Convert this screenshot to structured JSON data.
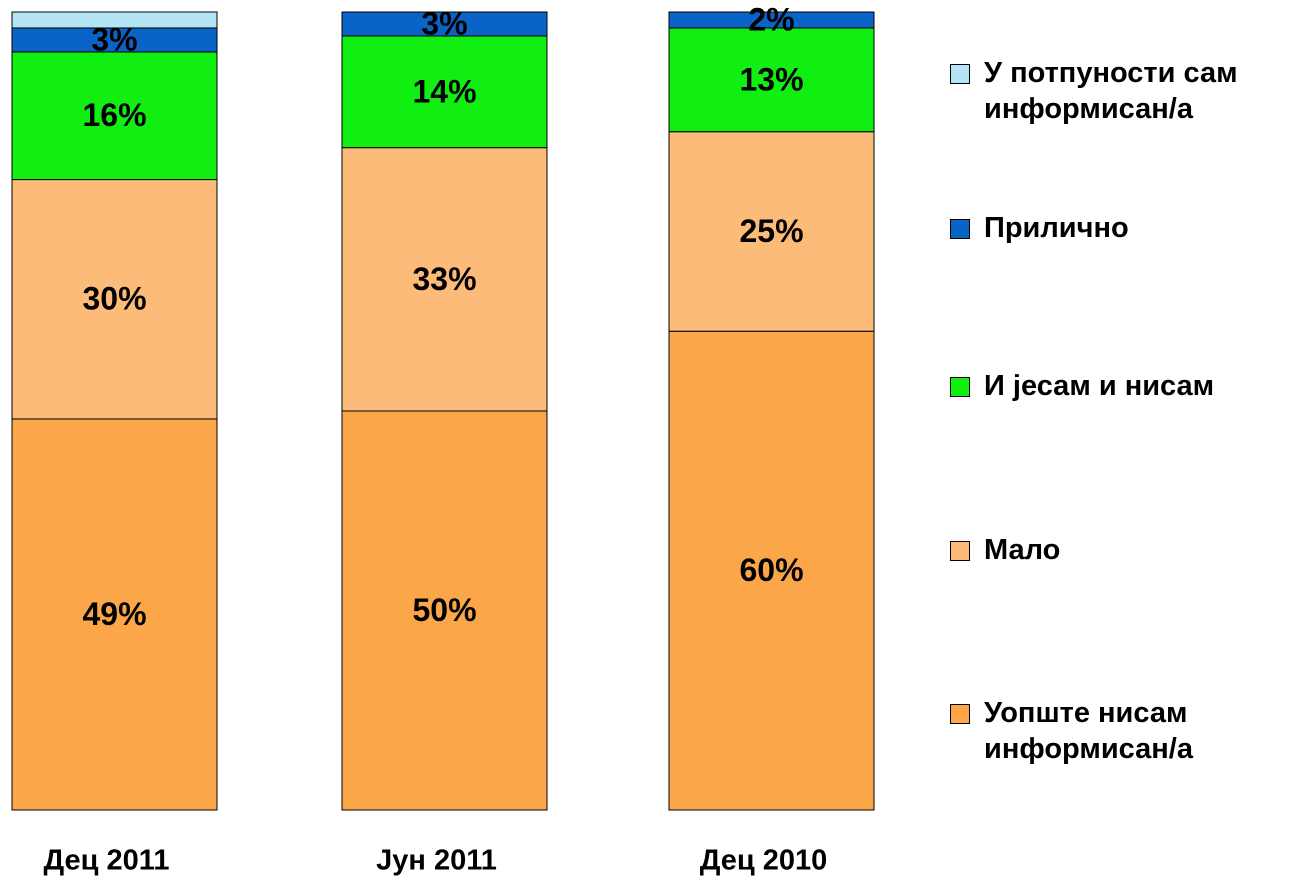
{
  "chart_data": {
    "type": "stacked_bar",
    "categories": [
      "Дец 2011",
      "Јун 2011",
      "Дец 2010"
    ],
    "ylim": [
      0,
      100
    ],
    "legend": "right",
    "series": [
      {
        "name": "Уопште нисам информисан/а",
        "color": "#fca64a",
        "values": [
          49,
          50,
          60
        ],
        "value_labels": [
          "49%",
          "50%",
          "60%"
        ]
      },
      {
        "name": "Мало",
        "color": "#fdbb7a",
        "values": [
          30,
          33,
          25
        ],
        "value_labels": [
          "30%",
          "33%",
          "25%"
        ]
      },
      {
        "name": "И јесам и нисам",
        "color": "#11ee11",
        "values": [
          16,
          14,
          13
        ],
        "value_labels": [
          "16%",
          "14%",
          "13%"
        ]
      },
      {
        "name": "Прилично",
        "color": "#0a64c8",
        "values": [
          3,
          3,
          2
        ],
        "value_labels": [
          "3%",
          "3%",
          "2%"
        ]
      },
      {
        "name": "У потпуности сам информисан/а",
        "color": "#b3e5f5",
        "values": [
          2,
          0,
          0
        ]
      }
    ]
  }
}
